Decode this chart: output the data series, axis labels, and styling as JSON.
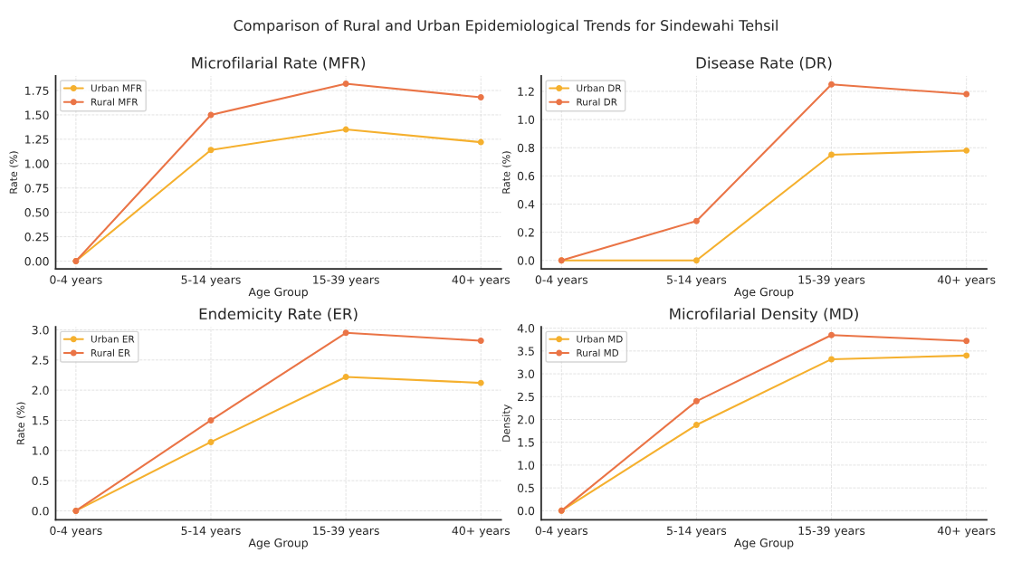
{
  "chart_data": [
    {
      "type": "line",
      "annotations": [
        "Comparison of Rural and Urban Epidemiological Trends for Sindewahi Tehsil"
      ],
      "title": "Microfilarial Rate (MFR)",
      "xlabel": "Age Group",
      "ylabel": "Rate (%)",
      "categories": [
        "0-4 years",
        "5-14 years",
        "15-39 years",
        "40+ years"
      ],
      "series": [
        {
          "name": "Urban MFR",
          "color": "#f5b02e",
          "values": [
            0,
            1.14,
            1.35,
            1.22
          ]
        },
        {
          "name": "Rural MFR",
          "color": "#ea7446",
          "values": [
            0,
            1.5,
            1.82,
            1.68
          ]
        }
      ],
      "ylim": [
        -0.08,
        1.9
      ],
      "yticks": [
        {
          "value": 0,
          "label": "0.00"
        },
        0.25,
        {
          "value": 0.5,
          "label": "0.50"
        },
        0.75,
        {
          "value": 1,
          "label": "1.00"
        },
        1.25,
        {
          "value": 1.5,
          "label": "1.50"
        },
        1.75
      ],
      "grid": true,
      "legend": "top left",
      "marker": "circle",
      "line_style": "solid"
    },
    {
      "type": "line",
      "title": "Disease Rate (DR)",
      "xlabel": "Age Group",
      "ylabel": "Rate (%)",
      "categories": [
        "0-4 years",
        "5-14 years",
        "15-39 years",
        "40+ years"
      ],
      "series": [
        {
          "name": "Urban DR",
          "color": "#f5b02e",
          "values": [
            0,
            0,
            0.75,
            0.78
          ]
        },
        {
          "name": "Rural DR",
          "color": "#ea7446",
          "values": [
            0,
            0.28,
            1.25,
            1.18
          ]
        }
      ],
      "ylim": [
        -0.06,
        1.31
      ],
      "yticks": [
        {
          "value": 0,
          "label": "0.0"
        },
        0.2,
        0.4,
        0.6,
        0.8,
        {
          "value": 1,
          "label": "1.0"
        },
        1.2
      ],
      "grid": true,
      "legend": "top left",
      "marker": "circle",
      "line_style": "solid"
    },
    {
      "type": "line",
      "title": "Endemicity Rate (ER)",
      "xlabel": "Age Group",
      "ylabel": "Rate (%)",
      "categories": [
        "0-4 years",
        "5-14 years",
        "15-39 years",
        "40+ years"
      ],
      "series": [
        {
          "name": "Urban ER",
          "color": "#f5b02e",
          "values": [
            0,
            1.14,
            2.22,
            2.12
          ]
        },
        {
          "name": "Rural ER",
          "color": "#ea7446",
          "values": [
            0,
            1.5,
            2.95,
            2.82
          ]
        }
      ],
      "ylim": [
        -0.15,
        3.05
      ],
      "yticks": [
        {
          "value": 0,
          "label": "0.0"
        },
        0.5,
        {
          "value": 1,
          "label": "1.0"
        },
        1.5,
        {
          "value": 2,
          "label": "2.0"
        },
        2.5,
        {
          "value": 3,
          "label": "3.0"
        }
      ],
      "grid": true,
      "legend": "top left",
      "marker": "circle",
      "line_style": "solid"
    },
    {
      "type": "line",
      "title": "Microfilarial Density (MD)",
      "xlabel": "Age Group",
      "ylabel": "Density",
      "categories": [
        "0-4 years",
        "5-14 years",
        "15-39 years",
        "40+ years"
      ],
      "series": [
        {
          "name": "Urban MD",
          "color": "#f5b02e",
          "values": [
            0,
            1.88,
            3.32,
            3.4
          ]
        },
        {
          "name": "Rural MD",
          "color": "#ea7446",
          "values": [
            0,
            2.4,
            3.85,
            3.72
          ]
        }
      ],
      "ylim": [
        -0.2,
        4.03
      ],
      "yticks": [
        {
          "value": 0,
          "label": "0.0"
        },
        0.5,
        {
          "value": 1,
          "label": "1.0"
        },
        1.5,
        {
          "value": 2,
          "label": "2.0"
        },
        2.5,
        {
          "value": 3,
          "label": "3.0"
        },
        3.5,
        {
          "value": 4,
          "label": "4.0"
        }
      ],
      "grid": true,
      "legend": "top left",
      "marker": "circle",
      "line_style": "solid"
    }
  ]
}
